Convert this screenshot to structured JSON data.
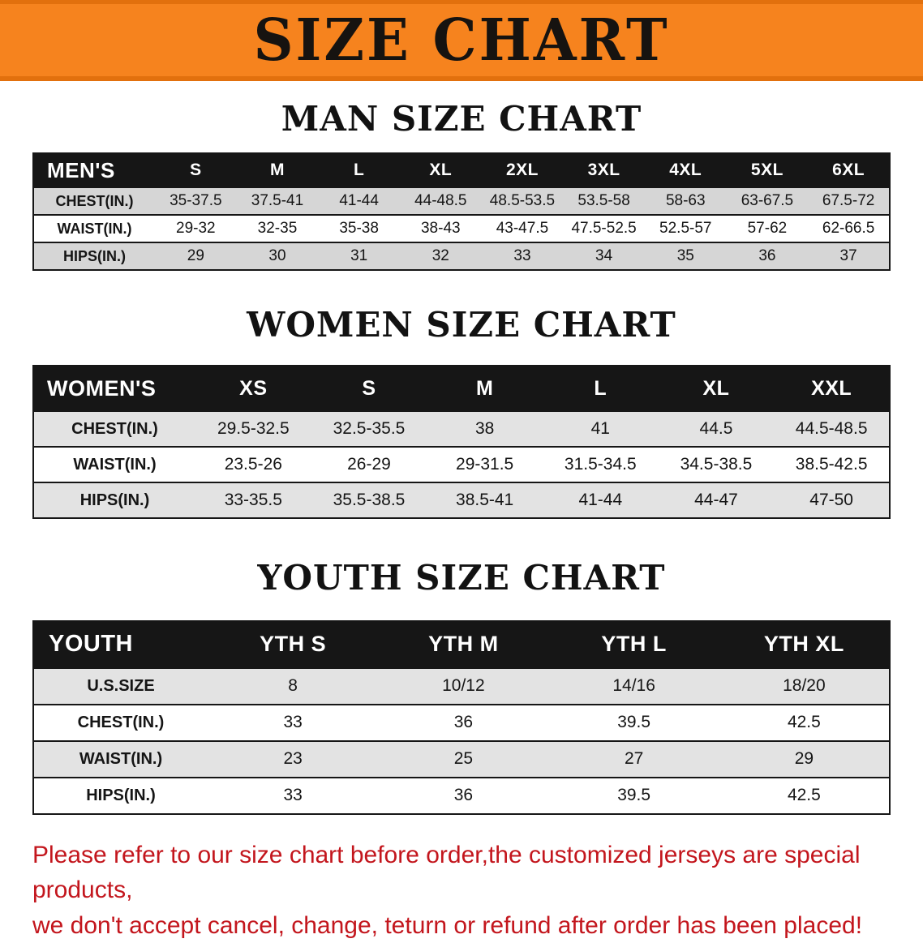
{
  "banner": {
    "title": "SIZE CHART"
  },
  "sections": [
    {
      "heading": "MAN SIZE CHART",
      "table": {
        "header": [
          "MEN'S",
          "S",
          "M",
          "L",
          "XL",
          "2XL",
          "3XL",
          "4XL",
          "5XL",
          "6XL"
        ],
        "rows": [
          [
            "CHEST(IN.)",
            "35-37.5",
            "37.5-41",
            "41-44",
            "44-48.5",
            "48.5-53.5",
            "53.5-58",
            "58-63",
            "63-67.5",
            "67.5-72"
          ],
          [
            "WAIST(IN.)",
            "29-32",
            "32-35",
            "35-38",
            "38-43",
            "43-47.5",
            "47.5-52.5",
            "52.5-57",
            "57-62",
            "62-66.5"
          ],
          [
            "HIPS(IN.)",
            "29",
            "30",
            "31",
            "32",
            "33",
            "34",
            "35",
            "36",
            "37"
          ]
        ]
      }
    },
    {
      "heading": "WOMEN SIZE CHART",
      "table": {
        "header": [
          "WOMEN'S",
          "XS",
          "S",
          "M",
          "L",
          "XL",
          "XXL"
        ],
        "rows": [
          [
            "CHEST(IN.)",
            "29.5-32.5",
            "32.5-35.5",
            "38",
            "41",
            "44.5",
            "44.5-48.5"
          ],
          [
            "WAIST(IN.)",
            "23.5-26",
            "26-29",
            "29-31.5",
            "31.5-34.5",
            "34.5-38.5",
            "38.5-42.5"
          ],
          [
            "HIPS(IN.)",
            "33-35.5",
            "35.5-38.5",
            "38.5-41",
            "41-44",
            "44-47",
            "47-50"
          ]
        ]
      }
    },
    {
      "heading": "YOUTH SIZE CHART",
      "table": {
        "header": [
          "YOUTH",
          "YTH S",
          "YTH M",
          "YTH L",
          "YTH XL"
        ],
        "rows": [
          [
            "U.S.SIZE",
            "8",
            "10/12",
            "14/16",
            "18/20"
          ],
          [
            "CHEST(IN.)",
            "33",
            "36",
            "39.5",
            "42.5"
          ],
          [
            "WAIST(IN.)",
            "23",
            "25",
            "27",
            "29"
          ],
          [
            "HIPS(IN.)",
            "33",
            "36",
            "39.5",
            "42.5"
          ]
        ]
      }
    }
  ],
  "footer": {
    "line1": "Please refer to our size chart before order,the customized jerseys are special products,",
    "line2": "we don't accept cancel, change, teturn or refund after order has been placed!"
  },
  "colors": {
    "banner_bg": "#F6831E",
    "banner_edge": "#E2700D",
    "header_bg": "#161616",
    "row_stripe": "#D9D9D9",
    "footer_text": "#C3161D"
  }
}
